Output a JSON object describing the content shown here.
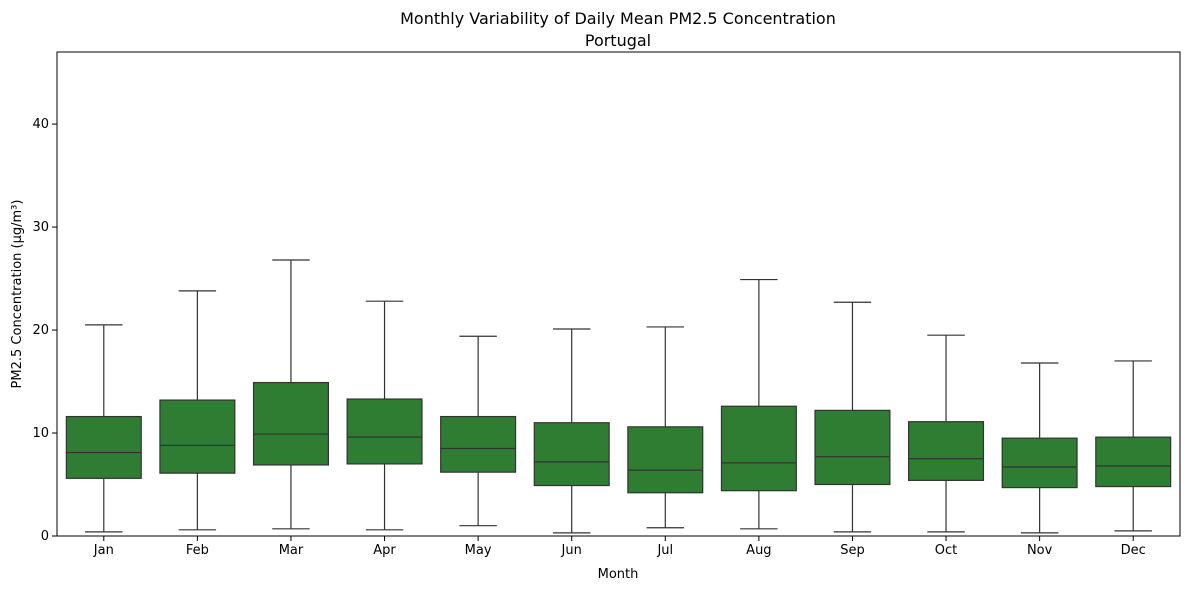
{
  "chart_data": {
    "type": "box",
    "title": "Monthly Variability of Daily Mean PM2.5 Concentration",
    "subtitle": "Portugal",
    "xlabel": "Month",
    "ylabel": "PM2.5 Concentration (µg/m³)",
    "categories": [
      "Jan",
      "Feb",
      "Mar",
      "Apr",
      "May",
      "Jun",
      "Jul",
      "Aug",
      "Sep",
      "Oct",
      "Nov",
      "Dec"
    ],
    "ylim": [
      0,
      47
    ],
    "yticks": [
      0,
      10,
      20,
      30,
      40
    ],
    "box_color": "#2e7d32",
    "line_color": "#333333",
    "grid": false,
    "legend": "none",
    "series": [
      {
        "stats": [
          {
            "min": 0.4,
            "q1": 5.6,
            "median": 8.1,
            "q3": 11.6,
            "max": 20.5
          },
          {
            "min": 0.6,
            "q1": 6.1,
            "median": 8.8,
            "q3": 13.2,
            "max": 23.8
          },
          {
            "min": 0.7,
            "q1": 6.9,
            "median": 9.9,
            "q3": 14.9,
            "max": 26.8
          },
          {
            "min": 0.6,
            "q1": 7.0,
            "median": 9.6,
            "q3": 13.3,
            "max": 22.8
          },
          {
            "min": 1.0,
            "q1": 6.2,
            "median": 8.5,
            "q3": 11.6,
            "max": 19.4
          },
          {
            "min": 0.3,
            "q1": 4.9,
            "median": 7.2,
            "q3": 11.0,
            "max": 20.1
          },
          {
            "min": 0.8,
            "q1": 4.2,
            "median": 6.4,
            "q3": 10.6,
            "max": 20.3
          },
          {
            "min": 0.7,
            "q1": 4.4,
            "median": 7.1,
            "q3": 12.6,
            "max": 24.9
          },
          {
            "min": 0.4,
            "q1": 5.0,
            "median": 7.7,
            "q3": 12.2,
            "max": 22.7
          },
          {
            "min": 0.4,
            "q1": 5.4,
            "median": 7.5,
            "q3": 11.1,
            "max": 19.5
          },
          {
            "min": 0.3,
            "q1": 4.7,
            "median": 6.7,
            "q3": 9.5,
            "max": 16.8
          },
          {
            "min": 0.5,
            "q1": 4.8,
            "median": 6.8,
            "q3": 9.6,
            "max": 17.0
          }
        ]
      }
    ]
  }
}
